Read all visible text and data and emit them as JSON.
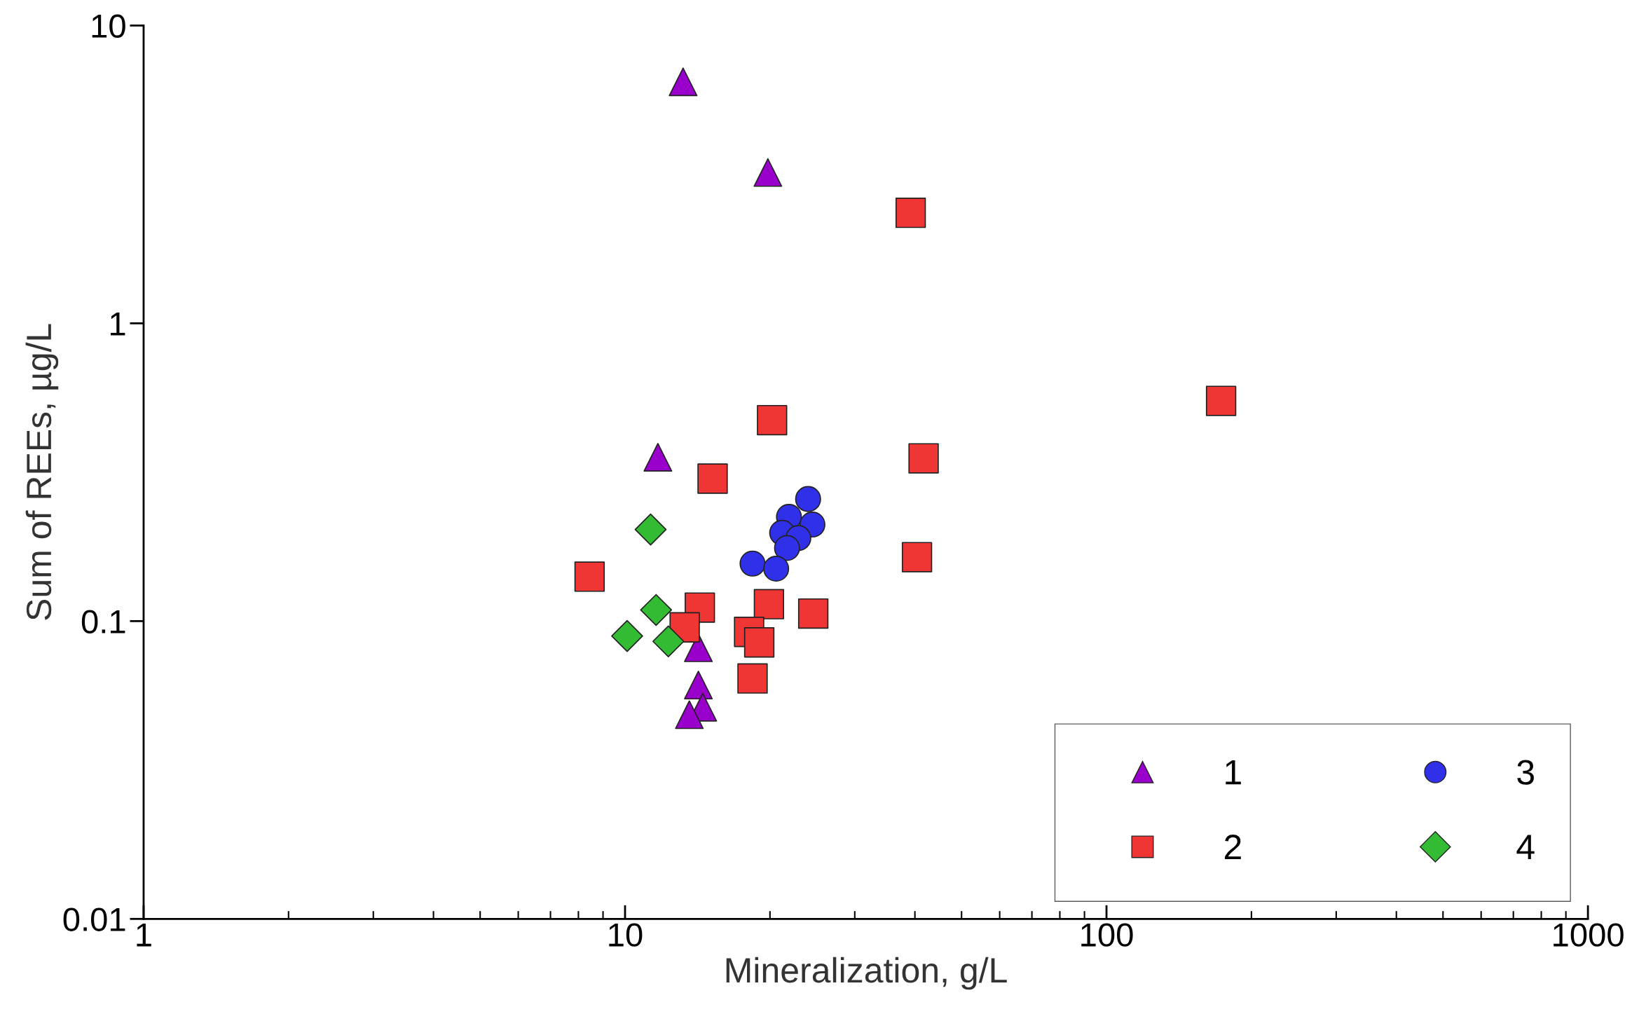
{
  "chart_data": {
    "type": "scatter",
    "xlabel": "Mineralization, g/L",
    "ylabel": "Sum of REEs, µg/L",
    "log": "xy",
    "xlim": [
      1,
      1000
    ],
    "ylim": [
      0.01,
      10
    ],
    "xticks": [
      1,
      10,
      100,
      1000
    ],
    "yticks": [
      {
        "value": 0.01,
        "label": "0.01"
      },
      {
        "value": 0.1,
        "label": "0.1"
      },
      {
        "value": 1,
        "label": "1"
      },
      {
        "value": 10,
        "label": "10"
      }
    ],
    "grid": false,
    "legend": "bottom right",
    "series": [
      {
        "name": "1",
        "color": "#9900cc",
        "marker": "triangle",
        "x": [
          13.2,
          19.8,
          11.7,
          14.2,
          14.2,
          14.5,
          13.6
        ],
        "values": [
          6.47,
          3.21,
          0.355,
          0.0814,
          0.061,
          0.0514,
          0.0485
        ]
      },
      {
        "name": "2",
        "color": "#f03535",
        "marker": "square",
        "x": [
          39.2,
          173,
          20.2,
          41.7,
          15.2,
          40.4,
          8.44,
          14.3,
          19.9,
          24.6,
          13.3,
          18.1,
          19.0,
          18.4
        ],
        "values": [
          2.35,
          0.549,
          0.473,
          0.352,
          0.301,
          0.164,
          0.141,
          0.111,
          0.114,
          0.106,
          0.0953,
          0.092,
          0.0848,
          0.0642
        ]
      },
      {
        "name": "3",
        "color": "#3030e8",
        "marker": "circle",
        "x": [
          24.0,
          21.9,
          24.5,
          21.2,
          22.9,
          21.7,
          18.4,
          20.6
        ],
        "values": [
          0.257,
          0.224,
          0.211,
          0.198,
          0.19,
          0.176,
          0.156,
          0.15
        ]
      },
      {
        "name": "4",
        "color": "#33bb33",
        "marker": "diamond",
        "x": [
          11.3,
          11.6,
          10.1,
          12.3
        ],
        "values": [
          0.203,
          0.109,
          0.0891,
          0.0855
        ]
      }
    ]
  }
}
